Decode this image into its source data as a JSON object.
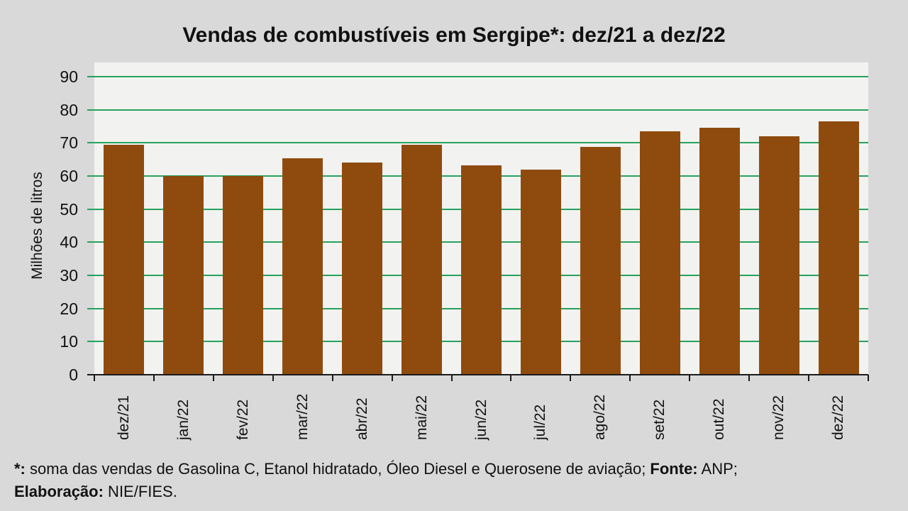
{
  "chart_data": {
    "type": "bar",
    "title": "Vendas de combustíveis em Sergipe*: dez/21 a dez/22",
    "categories": [
      "dez/21",
      "jan/22",
      "fev/22",
      "mar/22",
      "abr/22",
      "mai/22",
      "jun/22",
      "jul/22",
      "ago/22",
      "set/22",
      "out/22",
      "nov/22",
      "dez/22"
    ],
    "values": [
      69.4,
      60.0,
      60.1,
      65.3,
      64.0,
      69.4,
      63.3,
      62.0,
      68.8,
      73.4,
      74.5,
      72.1,
      76.6
    ],
    "xlabel": "",
    "ylabel": "Milhões de litros",
    "ylim": [
      0,
      90
    ],
    "yticks": [
      0,
      10,
      20,
      30,
      40,
      50,
      60,
      70,
      80,
      90
    ],
    "grid": true,
    "legend": false
  },
  "footnote": {
    "lines": [
      {
        "segments": [
          {
            "text": "*:",
            "bold": true
          },
          {
            "text": " soma das vendas de Gasolina C, Etanol hidratado, Óleo Diesel e Querosene de aviação; ",
            "bold": false
          },
          {
            "text": "Fonte:",
            "bold": true
          },
          {
            "text": " ANP;",
            "bold": false
          }
        ]
      },
      {
        "segments": [
          {
            "text": "Elaboração:",
            "bold": true
          },
          {
            "text": " NIE/FIES.",
            "bold": false
          }
        ]
      }
    ]
  },
  "colors": {
    "background": "#D9D9D9",
    "plot_background": "#F2F2F0",
    "bar": "#8F4B0E",
    "gridline": "#27A25E",
    "axis": "#1A1A1A",
    "text": "#111111"
  }
}
